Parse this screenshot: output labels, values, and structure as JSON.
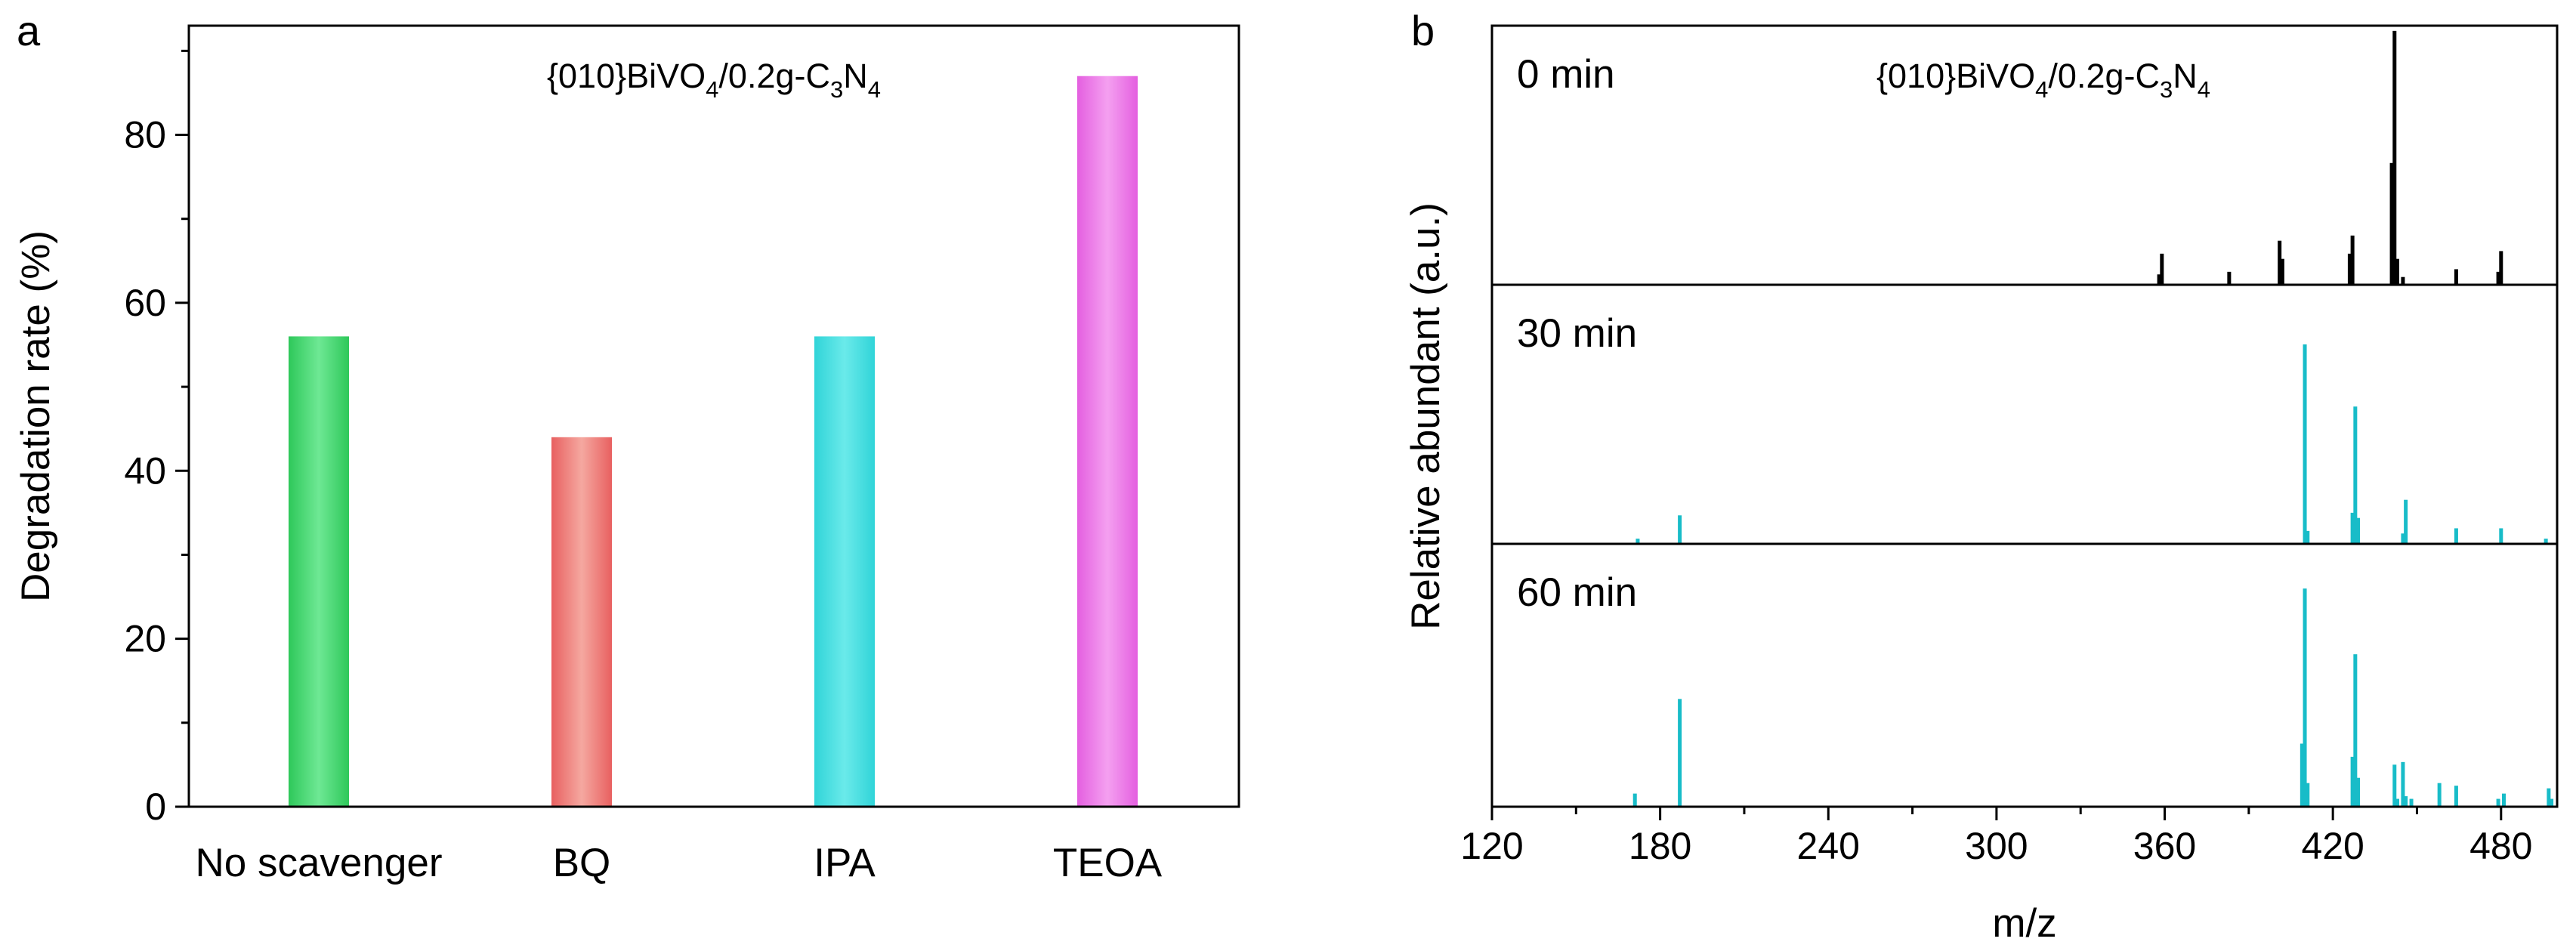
{
  "colors": {
    "no_scavenger": "#3ddc6a",
    "bq": "#ee7f7f",
    "ipa": "#3fdcdc",
    "teoa": "#ea7ae6",
    "ms_0": "#000000",
    "ms_30": "#18bcc8",
    "ms_60": "#18bcc8"
  },
  "chart_data": [
    {
      "panel": "a",
      "type": "bar",
      "title": "{010}BiVO4/0.2g-C3N4",
      "title_parts": {
        "pre": "{010}BiVO",
        "sub1": "4",
        "mid": "/0.2g-C",
        "sub2": "3",
        "mid2": "N",
        "sub3": "4"
      },
      "xlabel": "",
      "ylabel": "Degradation rate (%)",
      "categories": [
        "No scavenger",
        "BQ",
        "IPA",
        "TEOA"
      ],
      "values": [
        56,
        44,
        56,
        87
      ],
      "ylim": [
        0,
        93
      ],
      "yticks": [
        0,
        20,
        40,
        60,
        80
      ],
      "ytick_labels": [
        "0",
        "20",
        "40",
        "60",
        "80"
      ]
    },
    {
      "panel": "b",
      "type": "bar",
      "subtype": "mass spectrum (stacked panels)",
      "title": "{010}BiVO4/0.2g-C3N4",
      "xlabel": "m/z",
      "ylabel": "Relative abundant (a.u.)",
      "xlim": [
        120,
        500
      ],
      "xticks": [
        120,
        180,
        240,
        300,
        360,
        420,
        480
      ],
      "xtick_labels": [
        "120",
        "180",
        "240",
        "300",
        "360",
        "420",
        "480"
      ],
      "ylim": [
        0,
        100
      ],
      "series": [
        {
          "name": "0 min",
          "peaks": [
            {
              "mz": 358,
              "h": 4
            },
            {
              "mz": 359,
              "h": 12
            },
            {
              "mz": 383,
              "h": 5
            },
            {
              "mz": 401,
              "h": 17
            },
            {
              "mz": 402,
              "h": 10
            },
            {
              "mz": 426,
              "h": 12
            },
            {
              "mz": 427,
              "h": 19
            },
            {
              "mz": 441,
              "h": 47
            },
            {
              "mz": 442,
              "h": 98
            },
            {
              "mz": 443,
              "h": 10
            },
            {
              "mz": 445,
              "h": 3
            },
            {
              "mz": 464,
              "h": 6
            },
            {
              "mz": 479,
              "h": 5
            },
            {
              "mz": 480,
              "h": 13
            }
          ]
        },
        {
          "name": "30 min",
          "peaks": [
            {
              "mz": 172,
              "h": 2
            },
            {
              "mz": 187,
              "h": 11
            },
            {
              "mz": 410,
              "h": 77
            },
            {
              "mz": 411,
              "h": 5
            },
            {
              "mz": 427,
              "h": 12
            },
            {
              "mz": 428,
              "h": 53
            },
            {
              "mz": 429,
              "h": 10
            },
            {
              "mz": 445,
              "h": 4
            },
            {
              "mz": 446,
              "h": 17
            },
            {
              "mz": 464,
              "h": 6
            },
            {
              "mz": 480,
              "h": 6
            },
            {
              "mz": 496,
              "h": 2
            }
          ]
        },
        {
          "name": "60 min",
          "peaks": [
            {
              "mz": 171,
              "h": 5
            },
            {
              "mz": 187,
              "h": 41
            },
            {
              "mz": 409,
              "h": 24
            },
            {
              "mz": 410,
              "h": 83
            },
            {
              "mz": 411,
              "h": 9
            },
            {
              "mz": 427,
              "h": 19
            },
            {
              "mz": 428,
              "h": 58
            },
            {
              "mz": 429,
              "h": 11
            },
            {
              "mz": 442,
              "h": 16
            },
            {
              "mz": 443,
              "h": 3
            },
            {
              "mz": 445,
              "h": 17
            },
            {
              "mz": 446,
              "h": 4
            },
            {
              "mz": 448,
              "h": 3
            },
            {
              "mz": 458,
              "h": 9
            },
            {
              "mz": 464,
              "h": 8
            },
            {
              "mz": 479,
              "h": 3
            },
            {
              "mz": 481,
              "h": 5
            },
            {
              "mz": 497,
              "h": 7
            },
            {
              "mz": 498,
              "h": 3
            }
          ]
        }
      ]
    }
  ],
  "panel_a_label": "a",
  "panel_b_label": "b"
}
